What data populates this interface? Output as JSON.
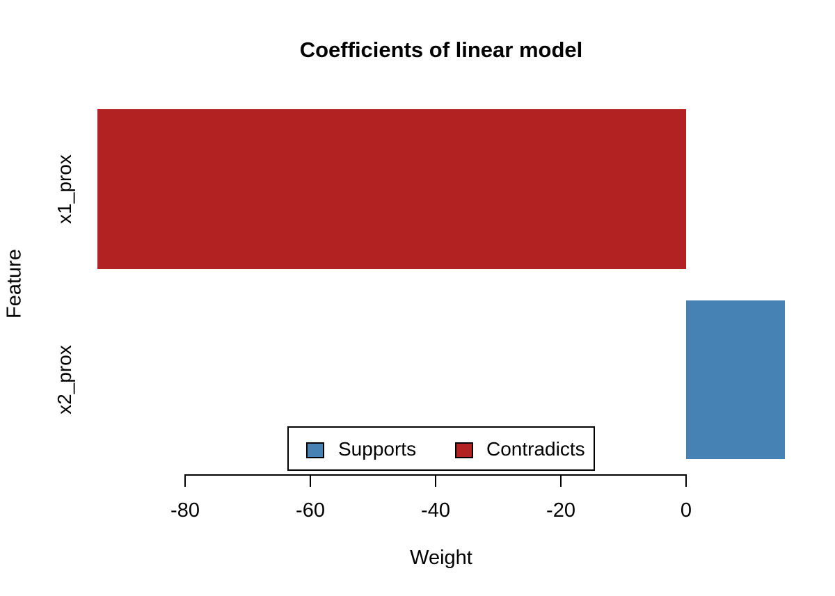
{
  "chart_data": {
    "type": "bar",
    "orientation": "horizontal",
    "title": "Coefficients of linear model",
    "xlabel": "Weight",
    "ylabel": "Feature",
    "categories": [
      "x1_prox",
      "x2_prox"
    ],
    "values": [
      -94,
      15.8
    ],
    "bar_colors": [
      "#B22222",
      "#4682B4"
    ],
    "xticks": [
      -80,
      -60,
      -40,
      -20,
      0
    ],
    "xtick_labels": [
      "-80",
      "-60",
      "-40",
      "-20",
      "0"
    ],
    "xlim": [
      -94,
      15.8
    ],
    "grid": false,
    "legend": {
      "position": "bottom-center-inside",
      "entries": [
        {
          "label": "Supports",
          "color": "#4682B4"
        },
        {
          "label": "Contradicts",
          "color": "#B22222"
        }
      ]
    }
  },
  "colors": {
    "supports": "#4682B4",
    "contradicts": "#B22222",
    "axis": "#000000",
    "text": "#000000",
    "background": "#FFFFFF"
  }
}
